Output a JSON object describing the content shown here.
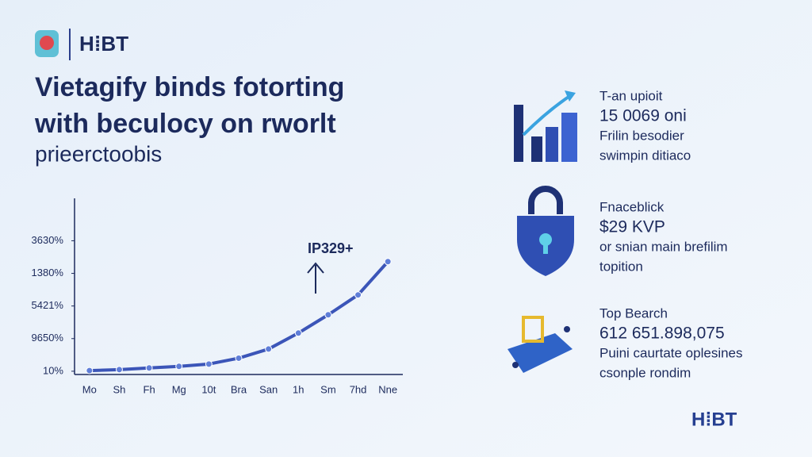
{
  "header": {
    "logo": "H⁞BT",
    "title_lines": [
      "Vietagify binds fotorting",
      "with beculocy on rworlt"
    ],
    "subtitle": "prieerctoobis"
  },
  "chart_data": {
    "type": "line",
    "categories": [
      "Mo",
      "Sh",
      "Fh",
      "Mg",
      "10t",
      "Bra",
      "San",
      "1h",
      "Sm",
      "7hd",
      "Nne"
    ],
    "series": [
      {
        "name": "trend",
        "color": "#3b55b8",
        "values": [
          0.02,
          0.05,
          0.1,
          0.15,
          0.22,
          0.4,
          0.68,
          1.17,
          1.73,
          2.34,
          3.36
        ]
      }
    ],
    "ylim": [
      -0.1,
      5.3
    ],
    "yticks": [
      {
        "value": 0,
        "label": "10%"
      },
      {
        "value": 1,
        "label": "9650%"
      },
      {
        "value": 2,
        "label": "5421%"
      },
      {
        "value": 3,
        "label": "1380%"
      },
      {
        "value": 4,
        "label": "3630%"
      }
    ],
    "annotation": "IP329+"
  },
  "stats": [
    {
      "lines": [
        "T-an upioit",
        "15 0069 oni",
        "Frilin besodier",
        "swimpin ditiaco"
      ]
    },
    {
      "lines": [
        "Fnaceblick",
        "$29 KVP",
        "or snian main brefilim",
        "topition"
      ]
    },
    {
      "lines": [
        "Top Bearch",
        "612 651.898,075",
        "Puini caurtate oplesines",
        "csonple rondim"
      ]
    }
  ],
  "footer": {
    "logo": "H⁞BT"
  }
}
